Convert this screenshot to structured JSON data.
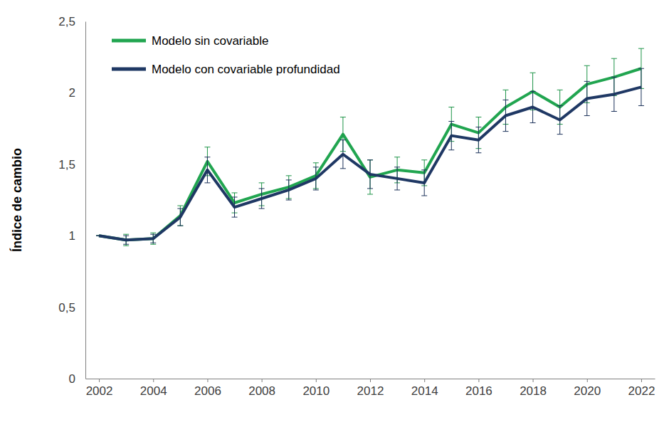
{
  "chart_data": {
    "type": "line",
    "y_label": "Índice de cambio",
    "x": [
      2002,
      2003,
      2004,
      2005,
      2006,
      2007,
      2008,
      2009,
      2010,
      2011,
      2012,
      2013,
      2014,
      2015,
      2016,
      2017,
      2018,
      2019,
      2020,
      2021,
      2022
    ],
    "series": [
      {
        "name": "Modelo sin covariable",
        "color": "#21a550",
        "values": [
          1.0,
          0.97,
          0.98,
          1.14,
          1.52,
          1.23,
          1.29,
          1.34,
          1.42,
          1.71,
          1.41,
          1.46,
          1.44,
          1.78,
          1.72,
          1.9,
          2.01,
          1.9,
          2.06,
          2.11,
          2.17
        ],
        "errors": [
          0,
          0.04,
          0.04,
          0.07,
          0.1,
          0.07,
          0.08,
          0.08,
          0.09,
          0.12,
          0.12,
          0.09,
          0.09,
          0.12,
          0.11,
          0.12,
          0.13,
          0.12,
          0.13,
          0.13,
          0.14
        ]
      },
      {
        "name": "Modelo con covariable profundidad",
        "color": "#1f3864",
        "values": [
          1.0,
          0.97,
          0.98,
          1.13,
          1.46,
          1.2,
          1.26,
          1.32,
          1.4,
          1.57,
          1.43,
          1.4,
          1.37,
          1.7,
          1.67,
          1.84,
          1.9,
          1.81,
          1.96,
          1.99,
          2.04
        ],
        "errors": [
          0,
          0.03,
          0.03,
          0.06,
          0.09,
          0.07,
          0.07,
          0.07,
          0.08,
          0.1,
          0.1,
          0.08,
          0.09,
          0.1,
          0.09,
          0.11,
          0.11,
          0.1,
          0.12,
          0.12,
          0.13
        ]
      }
    ],
    "xlim": [
      2001.5,
      2022.5
    ],
    "xticks": [
      2002,
      2004,
      2006,
      2008,
      2010,
      2012,
      2014,
      2016,
      2018,
      2020,
      2022
    ],
    "ylim": [
      0,
      2.5
    ],
    "yticks": [
      0,
      {
        "value": 0.5,
        "label": "0,5"
      },
      1,
      {
        "value": 1.5,
        "label": "1,5"
      },
      2,
      {
        "value": 2.5,
        "label": "2,5"
      }
    ],
    "grid": false,
    "legend": "upper left"
  }
}
